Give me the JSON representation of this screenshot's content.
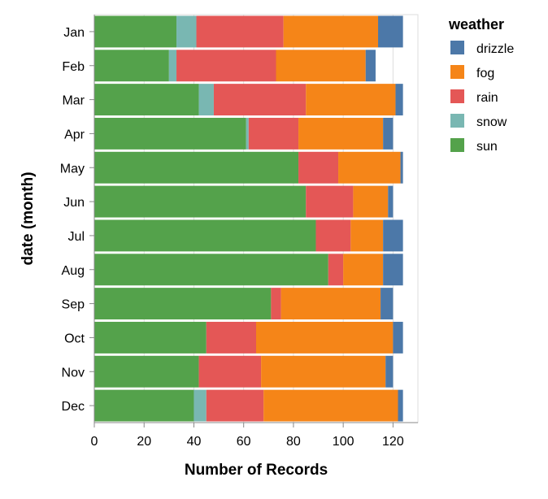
{
  "chart_data": {
    "type": "bar",
    "orientation": "horizontal",
    "stacked": true,
    "title": "",
    "xlabel": "Number of Records",
    "ylabel": "date (month)",
    "xlim": [
      0,
      130
    ],
    "x_ticks": [
      0,
      20,
      40,
      60,
      80,
      100,
      120
    ],
    "grid": true,
    "legend_title": "weather",
    "legend_position": "right",
    "categories": [
      "Jan",
      "Feb",
      "Mar",
      "Apr",
      "May",
      "Jun",
      "Jul",
      "Aug",
      "Sep",
      "Oct",
      "Nov",
      "Dec"
    ],
    "stack_order": [
      "sun",
      "snow",
      "rain",
      "fog",
      "drizzle"
    ],
    "legend_order": [
      "drizzle",
      "fog",
      "rain",
      "snow",
      "sun"
    ],
    "series": [
      {
        "name": "sun",
        "color": "#54a24b",
        "values": [
          33,
          30,
          42,
          61,
          82,
          85,
          89,
          94,
          71,
          45,
          42,
          40
        ]
      },
      {
        "name": "snow",
        "color": "#79b7b2",
        "values": [
          8,
          3,
          6,
          1,
          0,
          0,
          0,
          0,
          0,
          0,
          0,
          5
        ]
      },
      {
        "name": "rain",
        "color": "#e45756",
        "values": [
          35,
          40,
          37,
          20,
          16,
          19,
          14,
          6,
          4,
          20,
          25,
          23
        ]
      },
      {
        "name": "fog",
        "color": "#f58518",
        "values": [
          38,
          36,
          36,
          34,
          25,
          14,
          13,
          16,
          40,
          55,
          50,
          54
        ]
      },
      {
        "name": "drizzle",
        "color": "#4c78a8",
        "values": [
          10,
          4,
          3,
          4,
          1,
          2,
          8,
          8,
          5,
          4,
          3,
          2
        ]
      }
    ]
  }
}
